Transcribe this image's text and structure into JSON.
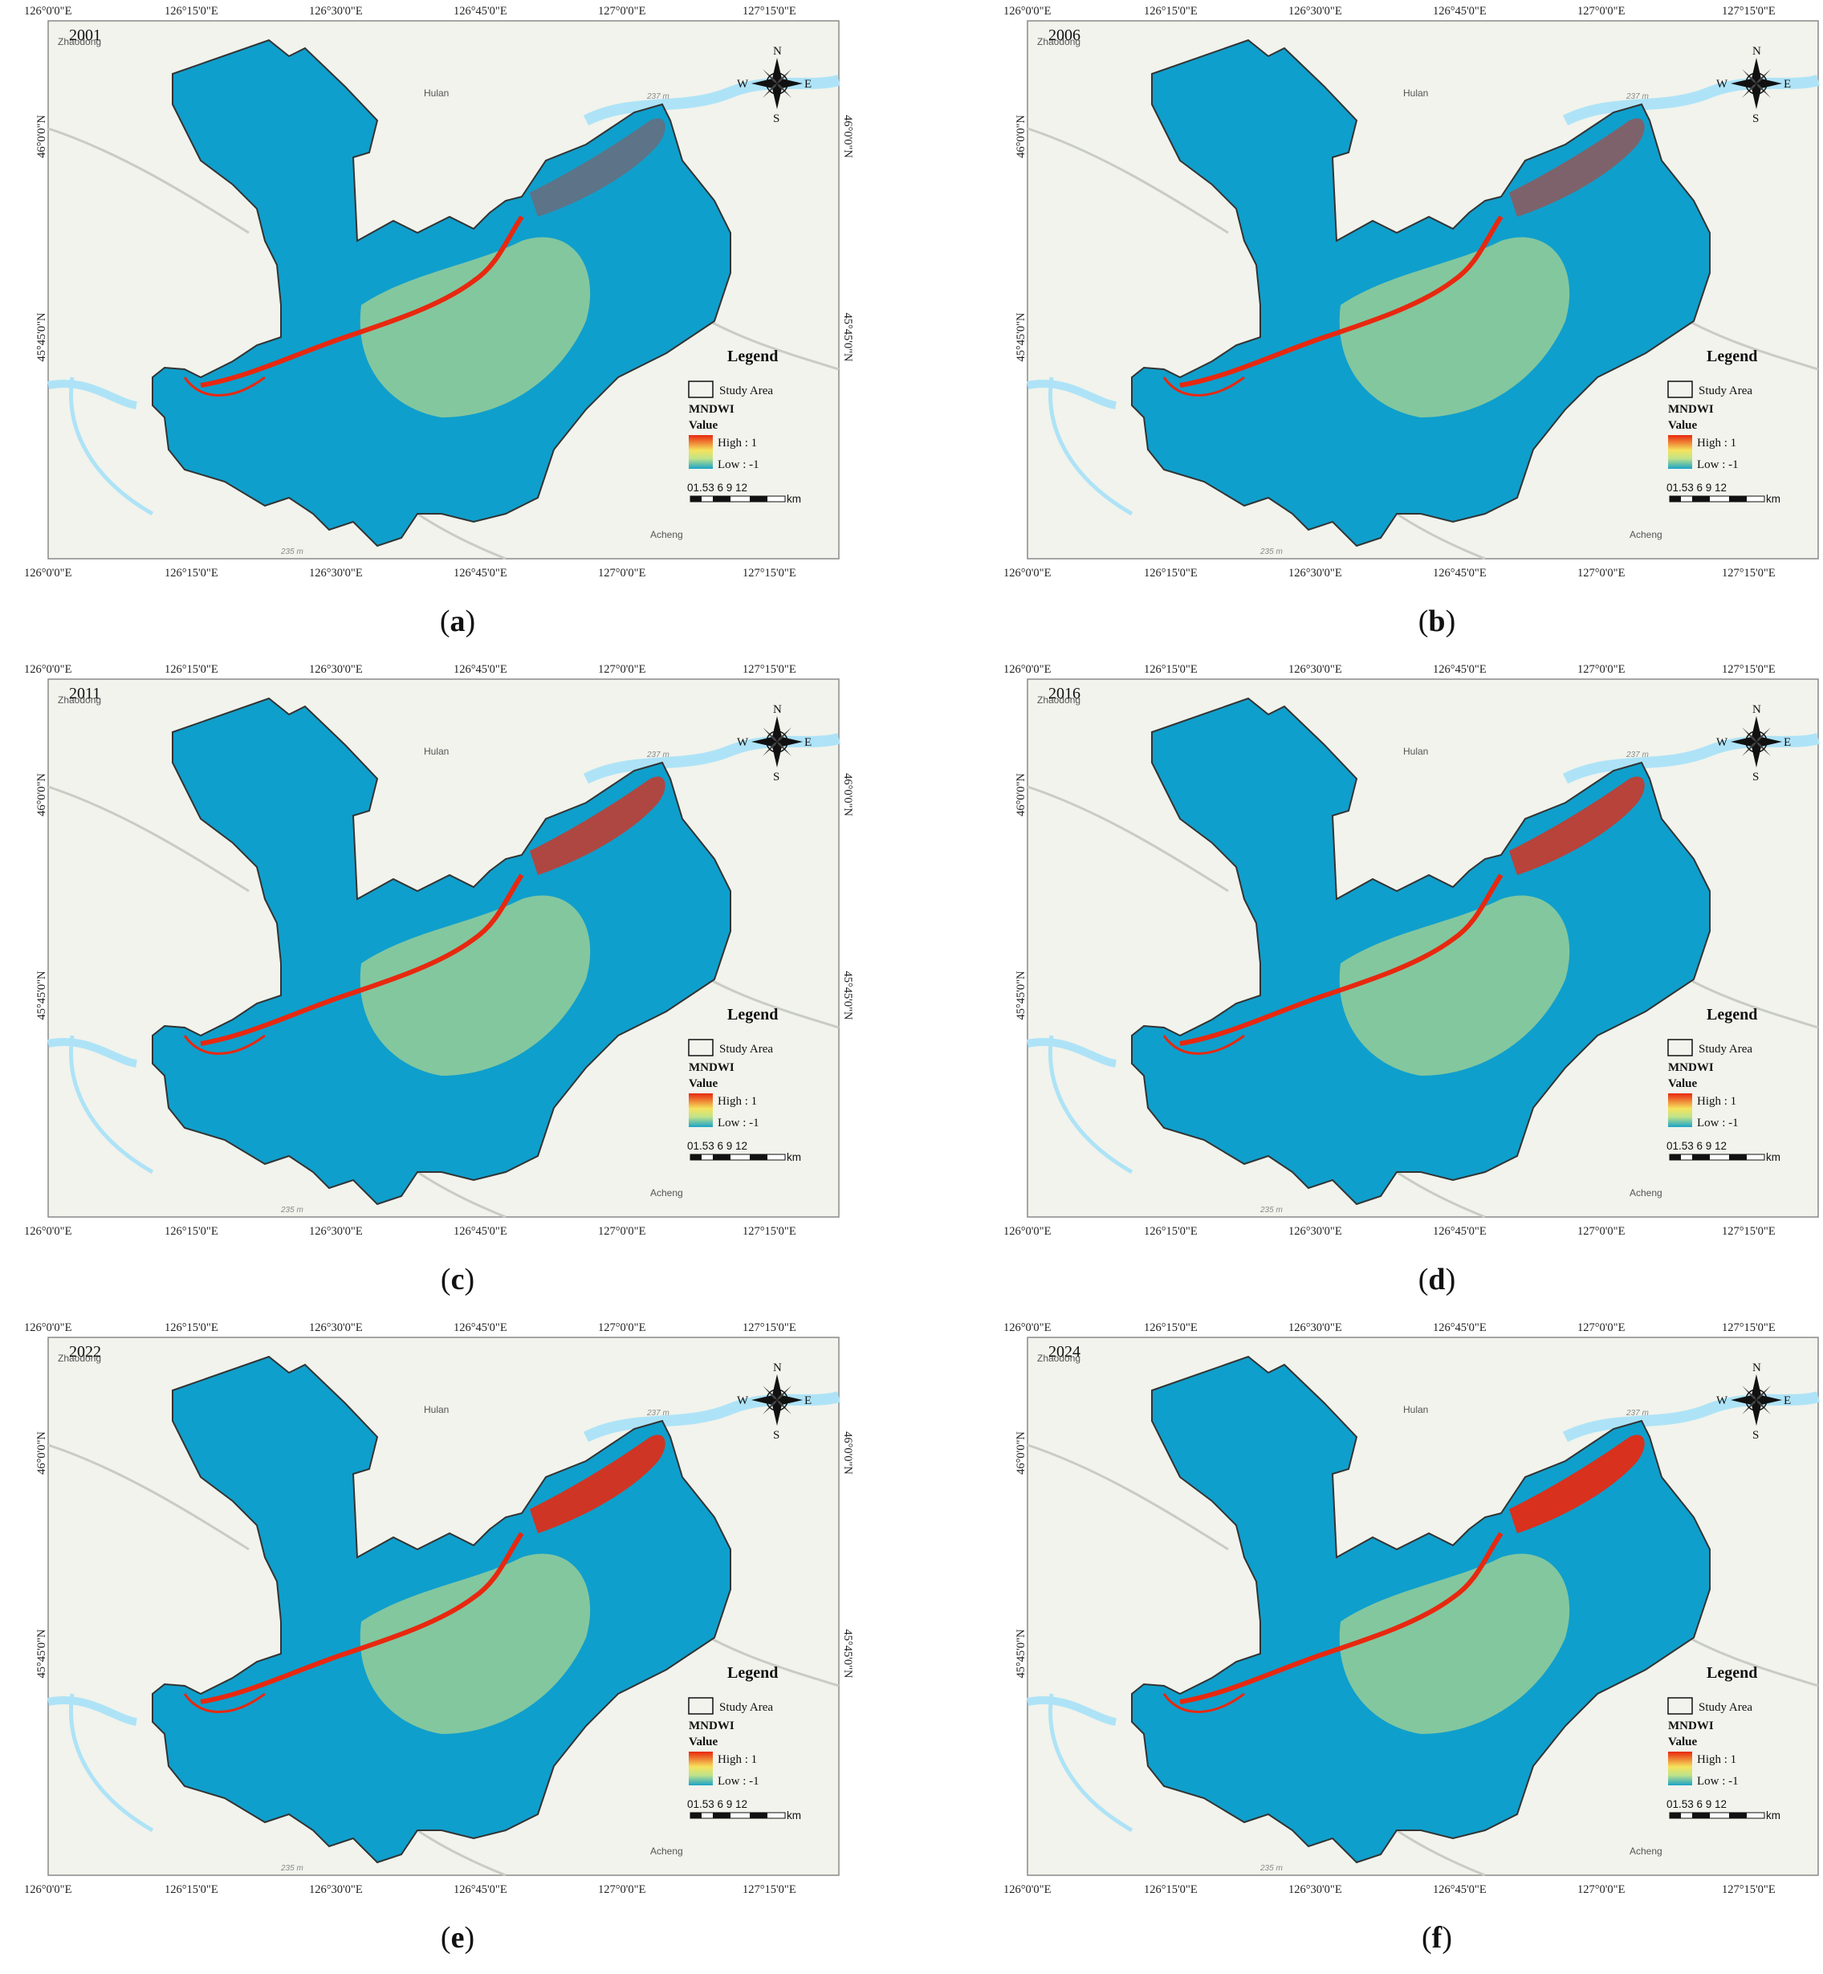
{
  "lon_ticks": [
    "126°0'0\"E",
    "126°15'0\"E",
    "126°30'0\"E",
    "126°45'0\"E",
    "127°0'0\"E",
    "127°15'0\"E"
  ],
  "lat_ticks": [
    "46°0'0\"N",
    "45°45'0\"N"
  ],
  "places": {
    "zhaodong": "Zhaodong",
    "hulan": "Hulan",
    "acheng": "Acheng",
    "elev_top": "237 m",
    "elev_bottom": "235 m"
  },
  "compass": {
    "n": "N",
    "s": "S",
    "e": "E",
    "w": "W"
  },
  "legend": {
    "title": "Legend",
    "study_area": "Study Area",
    "layer": "MNDWI",
    "value": "Value",
    "high": "High : 1",
    "low": "Low : -1",
    "ramp_colors": [
      "#e8280f",
      "#f5e35c",
      "#bfe38a",
      "#1aa3c6"
    ]
  },
  "scale": {
    "ticks": "01.53   6    9   12",
    "unit": "km"
  },
  "colors": {
    "water_high": "#e8280f",
    "land_low": "#0f9fcc",
    "mid_yellow": "#e3e77a",
    "map_bg": "#f1f3ec",
    "basemap_water": "#aee3f7"
  },
  "panels": [
    {
      "year": "2001",
      "caption_letter": "a",
      "wet_level": 0.15
    },
    {
      "year": "2006",
      "caption_letter": "b",
      "wet_level": 0.35
    },
    {
      "year": "2011",
      "caption_letter": "c",
      "wet_level": 0.65
    },
    {
      "year": "2016",
      "caption_letter": "d",
      "wet_level": 0.7
    },
    {
      "year": "2022",
      "caption_letter": "e",
      "wet_level": 0.85
    },
    {
      "year": "2024",
      "caption_letter": "f",
      "wet_level": 0.9
    }
  ]
}
